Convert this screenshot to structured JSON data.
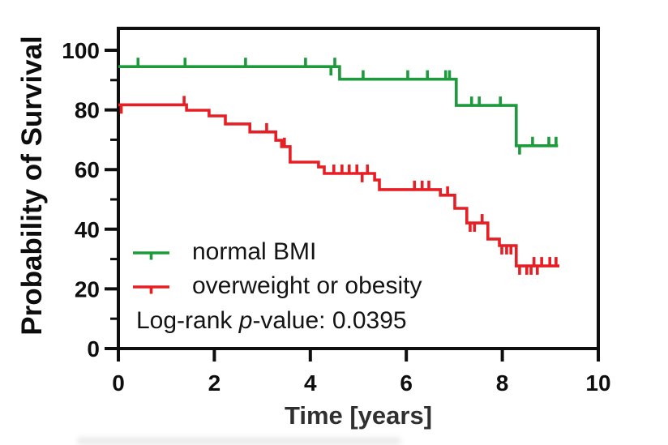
{
  "figure": {
    "background": "#ffffff"
  },
  "annotation": {
    "prefix": "Log-rank ",
    "italic": "p",
    "suffix": "-value: 0.0395",
    "full_text": "Log-rank p-value: 0.0395"
  },
  "chart_data": {
    "type": "line",
    "subtype": "kaplan_meier_survival_step",
    "title": "",
    "xlabel": "Time [years]",
    "ylabel": "Probability of Survival",
    "xlim": [
      0,
      10
    ],
    "ylim": [
      0,
      100
    ],
    "xticks": [
      0,
      2,
      4,
      6,
      8,
      10
    ],
    "yticks": [
      0,
      20,
      40,
      60,
      80,
      100
    ],
    "yticks_minor": [
      10,
      30,
      50,
      70,
      90
    ],
    "grid": false,
    "legend_position": "inside lower left",
    "axis_color": "#0f0f0f",
    "annotations": [
      "Log-rank p-value: 0.0395"
    ],
    "series": [
      {
        "name": "normal BMI",
        "color": "#1d9a3c",
        "steps": [
          [
            0,
            94.5
          ],
          [
            4.61,
            94.5
          ],
          [
            4.61,
            90.3
          ],
          [
            7.04,
            90.3
          ],
          [
            7.04,
            81.5
          ],
          [
            8.29,
            81.5
          ],
          [
            8.29,
            68.0
          ],
          [
            9.16,
            68.0
          ]
        ],
        "censors": [
          [
            0.41,
            94.5,
            "up"
          ],
          [
            1.39,
            94.5,
            "up"
          ],
          [
            2.65,
            94.5,
            "up"
          ],
          [
            3.9,
            94.5,
            "up"
          ],
          [
            4.43,
            94.5,
            "down"
          ],
          [
            4.51,
            94.5,
            "up"
          ],
          [
            5.1,
            90.3,
            "up"
          ],
          [
            6.03,
            90.3,
            "up"
          ],
          [
            6.44,
            90.3,
            "up"
          ],
          [
            6.82,
            90.3,
            "up"
          ],
          [
            6.9,
            90.3,
            "up"
          ],
          [
            7.36,
            81.5,
            "up"
          ],
          [
            7.52,
            81.5,
            "up"
          ],
          [
            7.96,
            81.5,
            "up"
          ],
          [
            8.36,
            68.0,
            "down"
          ],
          [
            8.63,
            68.0,
            "up"
          ],
          [
            8.97,
            68.0,
            "up"
          ],
          [
            9.12,
            68.0,
            "up"
          ]
        ]
      },
      {
        "name": "overweight or obesity",
        "color": "#e71f24",
        "steps": [
          [
            0,
            81.7
          ],
          [
            1.42,
            81.7
          ],
          [
            1.42,
            79.9
          ],
          [
            1.89,
            79.9
          ],
          [
            1.89,
            78.0
          ],
          [
            2.23,
            78.0
          ],
          [
            2.23,
            75.3
          ],
          [
            2.74,
            75.3
          ],
          [
            2.74,
            72.6
          ],
          [
            3.28,
            72.6
          ],
          [
            3.28,
            69.8
          ],
          [
            3.4,
            69.8
          ],
          [
            3.4,
            67.7
          ],
          [
            3.58,
            67.7
          ],
          [
            3.58,
            62.5
          ],
          [
            4.17,
            62.5
          ],
          [
            4.17,
            60.9
          ],
          [
            4.29,
            60.9
          ],
          [
            4.29,
            58.7
          ],
          [
            5.34,
            58.7
          ],
          [
            5.34,
            56.5
          ],
          [
            5.44,
            56.5
          ],
          [
            5.44,
            53.3
          ],
          [
            6.71,
            53.3
          ],
          [
            6.71,
            51.4
          ],
          [
            7.01,
            51.4
          ],
          [
            7.01,
            47.0
          ],
          [
            7.26,
            47.0
          ],
          [
            7.26,
            42.1
          ],
          [
            7.7,
            42.1
          ],
          [
            7.7,
            36.7
          ],
          [
            7.94,
            36.7
          ],
          [
            7.94,
            34.5
          ],
          [
            8.29,
            34.5
          ],
          [
            8.29,
            27.7
          ],
          [
            9.19,
            27.7
          ]
        ],
        "censors": [
          [
            0.06,
            81.7,
            "down"
          ],
          [
            1.37,
            81.7,
            "up"
          ],
          [
            3.09,
            72.6,
            "up"
          ],
          [
            3.46,
            67.7,
            "up"
          ],
          [
            4.49,
            58.7,
            "up"
          ],
          [
            4.66,
            58.7,
            "up"
          ],
          [
            4.81,
            58.7,
            "up"
          ],
          [
            4.97,
            58.7,
            "up"
          ],
          [
            5.08,
            58.7,
            "down"
          ],
          [
            5.19,
            58.7,
            "up"
          ],
          [
            6.17,
            53.3,
            "up"
          ],
          [
            6.33,
            53.3,
            "up"
          ],
          [
            6.47,
            53.3,
            "up"
          ],
          [
            6.86,
            51.4,
            "up"
          ],
          [
            7.33,
            42.1,
            "down"
          ],
          [
            7.42,
            42.1,
            "down"
          ],
          [
            7.58,
            42.1,
            "up"
          ],
          [
            7.99,
            34.5,
            "down"
          ],
          [
            8.09,
            34.5,
            "down"
          ],
          [
            8.18,
            34.5,
            "down"
          ],
          [
            8.36,
            27.7,
            "down"
          ],
          [
            8.51,
            27.7,
            "down"
          ],
          [
            8.6,
            27.7,
            "down"
          ],
          [
            8.66,
            27.7,
            "up"
          ],
          [
            8.73,
            27.7,
            "down"
          ],
          [
            8.82,
            27.7,
            "up"
          ],
          [
            8.99,
            27.7,
            "up"
          ],
          [
            9.12,
            27.7,
            "up"
          ]
        ]
      }
    ]
  }
}
